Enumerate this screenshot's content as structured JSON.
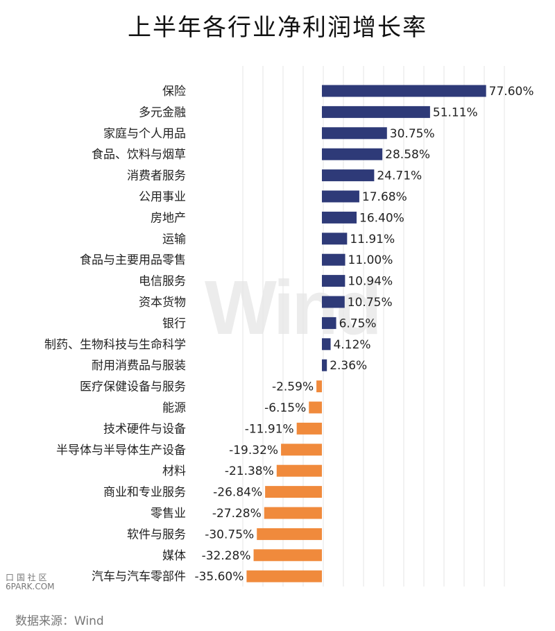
{
  "chart_data": {
    "type": "bar",
    "orientation": "horizontal",
    "title": "上半年各行业净利润增长率",
    "categories": [
      "保险",
      "多元金融",
      "家庭与个人用品",
      "食品、饮料与烟草",
      "消费者服务",
      "公用事业",
      "房地产",
      "运输",
      "食品与主要用品零售",
      "电信服务",
      "资本货物",
      "银行",
      "制药、生物科技与生命科学",
      "耐用消费品与服装",
      "医疗保健设备与服务",
      "能源",
      "技术硬件与设备",
      "半导体与半导体生产设备",
      "材料",
      "商业和专业服务",
      "零售业",
      "软件与服务",
      "媒体",
      "汽车与汽车零部件"
    ],
    "values": [
      77.6,
      51.11,
      30.75,
      28.58,
      24.71,
      17.68,
      16.4,
      11.91,
      11.0,
      10.94,
      10.75,
      6.75,
      4.12,
      2.36,
      -2.59,
      -6.15,
      -11.91,
      -19.32,
      -21.38,
      -26.84,
      -27.28,
      -30.75,
      -32.28,
      -35.6
    ],
    "value_labels": [
      "77.60%",
      "51.11%",
      "30.75%",
      "28.58%",
      "24.71%",
      "17.68%",
      "16.40%",
      "11.91%",
      "11.00%",
      "10.94%",
      "10.75%",
      "6.75%",
      "4.12%",
      "2.36%",
      "-2.59%",
      "-6.15%",
      "-11.91%",
      "-19.32%",
      "-21.38%",
      "-26.84%",
      "-27.28%",
      "-30.75%",
      "-32.28%",
      "-35.60%"
    ],
    "unit": "%",
    "colors": {
      "positive": "#2e3a78",
      "negative": "#f08a3c",
      "grid": "#e6e6e6"
    },
    "grid": true,
    "legend": "none"
  },
  "watermark": "Wind",
  "site_mark": [
    "口 国 社 区",
    "6PARK.COM"
  ],
  "source": "数据来源：Wind"
}
